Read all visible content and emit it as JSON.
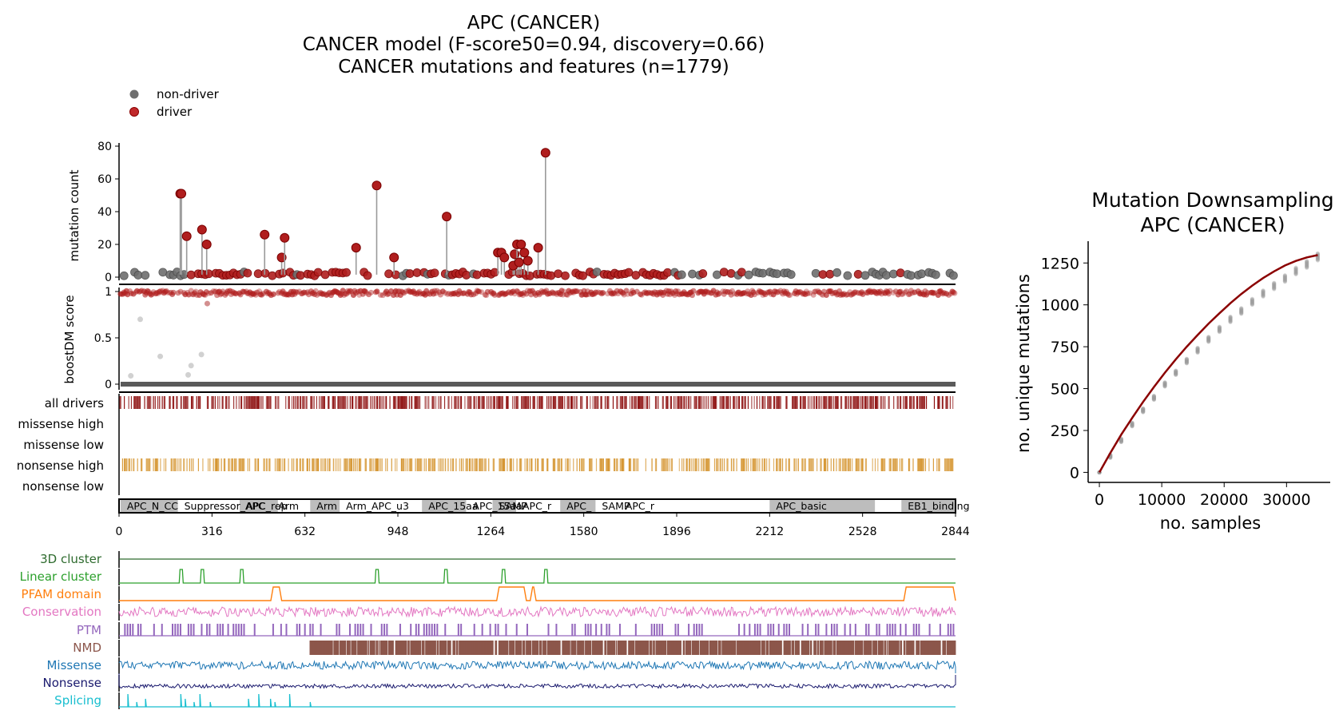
{
  "title": {
    "line1": "APC (CANCER)",
    "line2": "CANCER model (F-score50=0.94, discovery=0.66)",
    "line3": "CANCER mutations and features (n=1779)"
  },
  "legend": {
    "non_driver": "non-driver",
    "driver": "driver"
  },
  "colors": {
    "driver": "#b01e1e",
    "non_driver": "#6e6e6e",
    "all_drivers": "#8b0a0a",
    "nonsense_high": "#d4922a",
    "cluster_3d": "#2e6b2e",
    "linear_cluster": "#2ca02c",
    "pfam": "#ff7f0e",
    "conservation": "#e377c2",
    "ptm": "#9467bd",
    "nmd": "#8c564b",
    "missense": "#1f77b4",
    "nonsense": "#1a1a6e",
    "splicing": "#17becf",
    "curve": "#8b0000"
  },
  "chart_data": [
    {
      "type": "scatter",
      "name": "mutation-count-needle",
      "ylabel": "mutation count",
      "ylim": [
        0,
        80
      ],
      "yticks": [
        0,
        20,
        40,
        60,
        80
      ],
      "xlim": [
        0,
        2844
      ],
      "peaks": [
        {
          "x": 208,
          "y": 51
        },
        {
          "x": 212,
          "y": 51
        },
        {
          "x": 230,
          "y": 25
        },
        {
          "x": 282,
          "y": 29
        },
        {
          "x": 298,
          "y": 20
        },
        {
          "x": 495,
          "y": 26
        },
        {
          "x": 553,
          "y": 12
        },
        {
          "x": 563,
          "y": 24
        },
        {
          "x": 806,
          "y": 18
        },
        {
          "x": 876,
          "y": 56
        },
        {
          "x": 935,
          "y": 12
        },
        {
          "x": 1114,
          "y": 37
        },
        {
          "x": 1288,
          "y": 15
        },
        {
          "x": 1300,
          "y": 15
        },
        {
          "x": 1310,
          "y": 12
        },
        {
          "x": 1345,
          "y": 14
        },
        {
          "x": 1353,
          "y": 20
        },
        {
          "x": 1367,
          "y": 20
        },
        {
          "x": 1378,
          "y": 15
        },
        {
          "x": 1390,
          "y": 10
        },
        {
          "x": 1425,
          "y": 18
        },
        {
          "x": 1450,
          "y": 76
        },
        {
          "x": 1340,
          "y": 7
        },
        {
          "x": 1360,
          "y": 9
        }
      ]
    },
    {
      "type": "scatter",
      "name": "boostdm-score",
      "ylabel": "boostDM score",
      "ylim": [
        0,
        1
      ],
      "yticks": [
        "0",
        "0.5",
        "1"
      ],
      "outliers": [
        {
          "x": 72,
          "y": 0.7
        },
        {
          "x": 140,
          "y": 0.3
        },
        {
          "x": 280,
          "y": 0.32
        },
        {
          "x": 245,
          "y": 0.2
        },
        {
          "x": 300,
          "y": 0.87
        },
        {
          "x": 40,
          "y": 0.09
        },
        {
          "x": 235,
          "y": 0.1
        }
      ]
    },
    {
      "type": "table",
      "name": "consequence-tracks",
      "rows": [
        "all drivers",
        "missense high",
        "missense low",
        "nonsense high",
        "nonsense low"
      ]
    },
    {
      "type": "table",
      "name": "pfam-domains",
      "xticks": [
        0,
        316,
        632,
        948,
        1264,
        1580,
        1896,
        2212,
        2528,
        2844
      ],
      "domains": [
        {
          "label": "APC_N_CC",
          "start": 5,
          "end": 200,
          "shade": true
        },
        {
          "label": "Suppressor_APC",
          "start": 200,
          "end": 410,
          "shade": false
        },
        {
          "label": "APC_rep",
          "start": 410,
          "end": 540,
          "shade": true
        },
        {
          "label": "Arm",
          "start": 520,
          "end": 650,
          "shade": false
        },
        {
          "label": "Arm",
          "start": 650,
          "end": 750,
          "shade": true
        },
        {
          "label": "Arm_APC_u3",
          "start": 750,
          "end": 1030,
          "shade": false
        },
        {
          "label": "APC_15aa",
          "start": 1030,
          "end": 1180,
          "shade": true
        },
        {
          "label": "APC_15aa",
          "start": 1180,
          "end": 1270,
          "shade": false
        },
        {
          "label": "SAMP",
          "start": 1270,
          "end": 1350,
          "shade": true
        },
        {
          "label": "APC_r",
          "start": 1350,
          "end": 1500,
          "shade": false
        },
        {
          "label": "APC_",
          "start": 1500,
          "end": 1620,
          "shade": true
        },
        {
          "label": "SAMP",
          "start": 1620,
          "end": 1700,
          "shade": false
        },
        {
          "label": "APC_r",
          "start": 1700,
          "end": 2212,
          "shade": false
        },
        {
          "label": "APC_basic",
          "start": 2212,
          "end": 2570,
          "shade": true
        },
        {
          "label": "EB1_binding",
          "start": 2660,
          "end": 2844,
          "shade": true
        }
      ]
    },
    {
      "type": "line",
      "name": "feature-tracks",
      "rows": [
        "3D cluster",
        "Linear cluster",
        "PFAM domain",
        "Conservation",
        "PTM",
        "NMD",
        "Missense",
        "Nonsense",
        "Splicing"
      ],
      "linear_cluster_peaks": [
        210,
        282,
        416,
        876,
        1110,
        1306,
        1450
      ],
      "pfam_high": [
        [
          516,
          553
        ],
        [
          1284,
          1385
        ],
        [
          1398,
          1418
        ],
        [
          2668,
          2844
        ]
      ],
      "nmd_start": 650,
      "splicing_spikes": [
        30,
        60,
        90,
        210,
        225,
        255,
        275,
        310,
        440,
        475,
        515,
        530,
        580,
        650
      ]
    },
    {
      "type": "scatter",
      "name": "mutation-downsampling",
      "title": "Mutation Downsampling",
      "subtitle": "APC (CANCER)",
      "xlabel": "no. samples",
      "ylabel": "no. unique mutations",
      "xlim": [
        -1800,
        37000
      ],
      "ylim": [
        -60,
        1380
      ],
      "xticks": [
        0,
        10000,
        20000,
        30000
      ],
      "yticks": [
        0,
        250,
        500,
        750,
        1000,
        1250
      ],
      "x": [
        0,
        1750,
        3500,
        5250,
        7000,
        8750,
        10500,
        12250,
        14000,
        15750,
        17500,
        19250,
        21000,
        22750,
        24500,
        26250,
        28000,
        29750,
        31500,
        33250,
        35000
      ],
      "sample_center": [
        0,
        100,
        195,
        290,
        375,
        450,
        530,
        600,
        670,
        735,
        800,
        860,
        920,
        970,
        1025,
        1075,
        1120,
        1165,
        1210,
        1250,
        1295
      ],
      "fit": [
        0,
        115,
        225,
        325,
        420,
        510,
        595,
        675,
        750,
        820,
        888,
        950,
        1010,
        1065,
        1115,
        1160,
        1200,
        1235,
        1262,
        1283,
        1297
      ]
    }
  ]
}
